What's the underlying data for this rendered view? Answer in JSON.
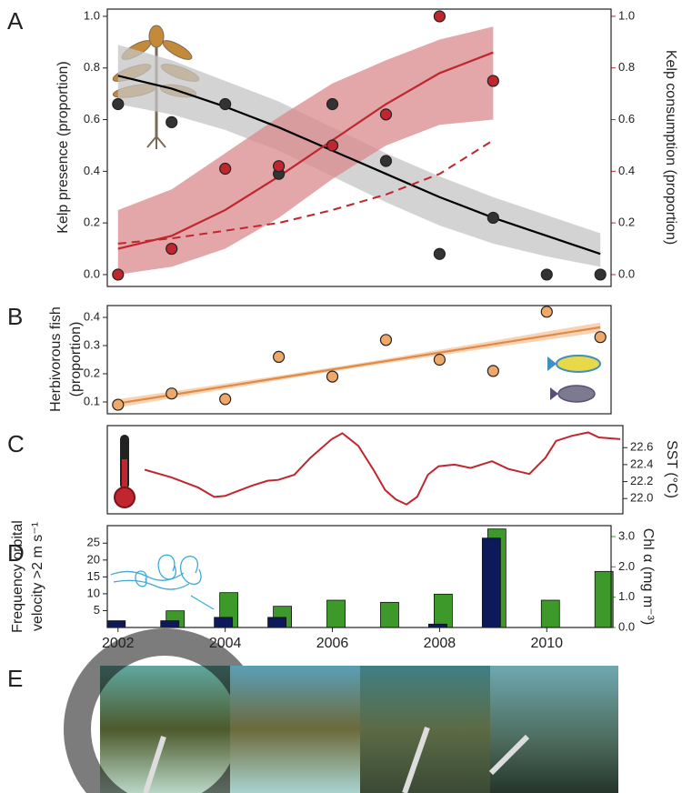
{
  "chart_data": [
    {
      "panel_label": "A",
      "type": "scatter",
      "x": [
        2002,
        2003,
        2004,
        2005,
        2006,
        2007,
        2008,
        2009,
        2010,
        2011
      ],
      "xlim": [
        2001.8,
        2011.2
      ],
      "ylabel": "Kelp presence (proportion)",
      "ylim": [
        -0.046,
        1.028
      ],
      "yticks": [
        {
          "value": 0,
          "label": "0.0"
        },
        0.2,
        0.4,
        0.6,
        0.8,
        {
          "value": 1,
          "label": "1.0"
        }
      ],
      "y2label": "Kelp consumption (proportion)",
      "y2lim": [
        -0.046,
        1.028
      ],
      "y2ticks": [
        {
          "value": 0,
          "label": "0.0"
        },
        0.2,
        0.4,
        0.6,
        0.8,
        {
          "value": 1,
          "label": "1.0"
        }
      ],
      "series": [
        {
          "color": "#333333",
          "band_color": "#c4c4c4",
          "values": [
            0.66,
            0.59,
            0.66,
            0.39,
            0.66,
            0.44,
            0.08,
            0.22,
            0,
            0
          ],
          "fit": [
            0.77,
            0.72,
            0.65,
            0.57,
            0.48,
            0.39,
            0.3,
            0.22,
            0.15,
            0.08
          ],
          "band_lower": [
            0.66,
            0.62,
            0.56,
            0.48,
            0.38,
            0.28,
            0.19,
            0.12,
            0.07,
            0.03
          ],
          "band_upper": [
            0.89,
            0.83,
            0.75,
            0.67,
            0.57,
            0.47,
            0.38,
            0.3,
            0.23,
            0.16
          ]
        },
        {
          "axis": "y2",
          "color": "#c0262d",
          "band_color": "#d98a8d",
          "x": [
            2002,
            2003,
            2004,
            2005,
            2006,
            2007,
            2008,
            2009
          ],
          "values": [
            0,
            0.1,
            0.41,
            0.42,
            0.5,
            0.62,
            1.0,
            0.75
          ],
          "fit": [
            0.1,
            0.15,
            0.25,
            0.38,
            0.52,
            0.66,
            0.78,
            0.86
          ],
          "dashed": [
            0.12,
            0.14,
            0.17,
            0.2,
            0.25,
            0.31,
            0.39,
            0.52
          ],
          "band_lower": [
            0,
            0.03,
            0.1,
            0.22,
            0.37,
            0.5,
            0.58,
            0.6
          ],
          "band_upper": [
            0.25,
            0.33,
            0.47,
            0.61,
            0.74,
            0.83,
            0.91,
            0.96
          ]
        }
      ]
    },
    {
      "panel_label": "B",
      "type": "scatter",
      "x": [
        2002,
        2003,
        2004,
        2005,
        2006,
        2007,
        2008,
        2009,
        2010,
        2011
      ],
      "xlim": [
        2001.8,
        2011.2
      ],
      "ylabel": [
        "Herbivorous fish",
        "(proportion)"
      ],
      "ylim": [
        0.058,
        0.442
      ],
      "yticks": [
        0.1,
        0.2,
        0.3,
        0.4
      ],
      "series": [
        {
          "color": "#f0a868",
          "line_color": "#e08a45",
          "band_color": "#f3c49b",
          "values": [
            0.09,
            0.13,
            0.11,
            0.26,
            0.19,
            0.32,
            0.25,
            0.21,
            0.42,
            0.33
          ],
          "fit": [
            0.095,
            0.125,
            0.155,
            0.185,
            0.215,
            0.245,
            0.275,
            0.305,
            0.335,
            0.365
          ],
          "band_lower": [
            0.08,
            0.113,
            0.145,
            0.177,
            0.208,
            0.237,
            0.265,
            0.293,
            0.32,
            0.348
          ],
          "band_upper": [
            0.11,
            0.137,
            0.165,
            0.193,
            0.222,
            0.253,
            0.285,
            0.317,
            0.35,
            0.382
          ]
        }
      ]
    },
    {
      "panel_label": "C",
      "type": "line",
      "xlim": [
        2001.8,
        2011.45
      ],
      "ylabel": "SST (°C)",
      "ylim": [
        21.82,
        22.86
      ],
      "yticks": [
        {
          "value": 22,
          "label": "22.0"
        },
        22.2,
        22.4,
        22.6
      ],
      "series": [
        {
          "color": "#c0262d",
          "x": [
            2002.5,
            2003,
            2003.5,
            2003.8,
            2004,
            2004.5,
            2004.8,
            2005,
            2005.3,
            2005.6,
            2006,
            2006.2,
            2006.5,
            2006.8,
            2007,
            2007.2,
            2007.4,
            2007.6,
            2007.8,
            2008,
            2008.3,
            2008.6,
            2009,
            2009.3,
            2009.7,
            2010,
            2010.2,
            2010.5,
            2010.8,
            2011,
            2011.4
          ],
          "values": [
            22.34,
            22.25,
            22.13,
            22.02,
            22.03,
            22.15,
            22.21,
            22.22,
            22.28,
            22.48,
            22.7,
            22.77,
            22.62,
            22.32,
            22.1,
            21.99,
            21.93,
            22.02,
            22.28,
            22.38,
            22.4,
            22.36,
            22.44,
            22.35,
            22.29,
            22.48,
            22.68,
            22.74,
            22.78,
            22.72,
            22.7
          ]
        }
      ]
    },
    {
      "panel_label": "D",
      "type": "bar",
      "x": [
        2002,
        2003,
        2004,
        2005,
        2006,
        2007,
        2008,
        2009,
        2010,
        2011
      ],
      "xlim": [
        2001.8,
        2011.2
      ],
      "xticks": [
        2002,
        2004,
        2006,
        2008,
        2010
      ],
      "ylabel": [
        "Frequency orbital",
        "velocity >2 m s⁻¹"
      ],
      "ylim": [
        0,
        30.2
      ],
      "yticks": [
        5,
        10,
        15,
        20,
        25
      ],
      "y2label": "Chl α (mg m⁻³)",
      "y2lim": [
        0,
        3.36
      ],
      "y2ticks": [
        {
          "value": 0,
          "label": "0.0"
        },
        {
          "value": 1,
          "label": "1.0"
        },
        {
          "value": 2,
          "label": "2.0"
        },
        {
          "value": 3,
          "label": "3.0"
        }
      ],
      "series": [
        {
          "color": "#0c1a5c",
          "values": [
            2,
            2,
            3,
            3,
            0,
            0,
            1,
            26.5,
            0,
            0
          ]
        },
        {
          "axis": "y2",
          "color": "#3d9a2a",
          "values": [
            null,
            0.55,
            1.15,
            0.7,
            0.9,
            0.83,
            1.1,
            3.25,
            0.9,
            1.85
          ]
        }
      ]
    }
  ],
  "photo_panel": {
    "label": "E"
  }
}
